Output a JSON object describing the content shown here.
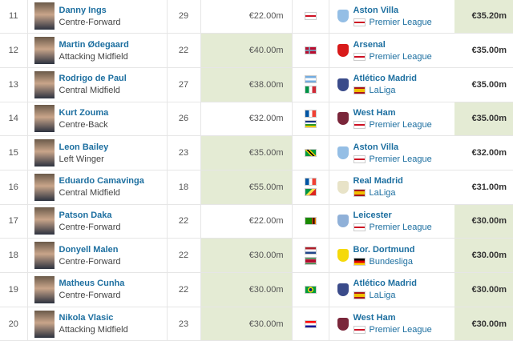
{
  "colors": {
    "highlight": "#e4ebd4",
    "link": "#1d6fa0"
  },
  "rows": [
    {
      "rank": "11",
      "name": "Danny Ings",
      "position": "Centre-Forward",
      "age": "29",
      "market_value": "€22.00m",
      "mv_hl": false,
      "nationality": [
        "england"
      ],
      "club": "Aston Villa",
      "crest": "#94bee5",
      "league": "Premier League",
      "league_flag": "england",
      "fee": "€35.20m",
      "fee_hl": true
    },
    {
      "rank": "12",
      "name": "Martin Ødegaard",
      "position": "Attacking Midfield",
      "age": "22",
      "market_value": "€40.00m",
      "mv_hl": true,
      "nationality": [
        "norway"
      ],
      "club": "Arsenal",
      "crest": "#d81a1a",
      "league": "Premier League",
      "league_flag": "england",
      "fee": "€35.00m",
      "fee_hl": false
    },
    {
      "rank": "13",
      "name": "Rodrigo de Paul",
      "position": "Central Midfield",
      "age": "27",
      "market_value": "€38.00m",
      "mv_hl": true,
      "nationality": [
        "argentina",
        "italy"
      ],
      "club": "Atlético Madrid",
      "crest": "#3a4b8a",
      "league": "LaLiga",
      "league_flag": "spain",
      "fee": "€35.00m",
      "fee_hl": false
    },
    {
      "rank": "14",
      "name": "Kurt Zouma",
      "position": "Centre-Back",
      "age": "26",
      "market_value": "€32.00m",
      "mv_hl": false,
      "nationality": [
        "france",
        "centralafrica"
      ],
      "club": "West Ham",
      "crest": "#7a263a",
      "league": "Premier League",
      "league_flag": "england",
      "fee": "€35.00m",
      "fee_hl": true
    },
    {
      "rank": "15",
      "name": "Leon Bailey",
      "position": "Left Winger",
      "age": "23",
      "market_value": "€35.00m",
      "mv_hl": true,
      "nationality": [
        "jamaica"
      ],
      "club": "Aston Villa",
      "crest": "#94bee5",
      "league": "Premier League",
      "league_flag": "england",
      "fee": "€32.00m",
      "fee_hl": false
    },
    {
      "rank": "16",
      "name": "Eduardo Camavinga",
      "position": "Central Midfield",
      "age": "18",
      "market_value": "€55.00m",
      "mv_hl": true,
      "nationality": [
        "france",
        "congo"
      ],
      "club": "Real Madrid",
      "crest": "#e8e3c8",
      "league": "LaLiga",
      "league_flag": "spain",
      "fee": "€31.00m",
      "fee_hl": false
    },
    {
      "rank": "17",
      "name": "Patson Daka",
      "position": "Centre-Forward",
      "age": "22",
      "market_value": "€22.00m",
      "mv_hl": false,
      "nationality": [
        "zambia"
      ],
      "club": "Leicester",
      "crest": "#8fb0d8",
      "league": "Premier League",
      "league_flag": "england",
      "fee": "€30.00m",
      "fee_hl": true
    },
    {
      "rank": "18",
      "name": "Donyell Malen",
      "position": "Centre-Forward",
      "age": "22",
      "market_value": "€30.00m",
      "mv_hl": true,
      "nationality": [
        "netherlands",
        "suriname"
      ],
      "club": "Bor. Dortmund",
      "crest": "#f5d90a",
      "league": "Bundesliga",
      "league_flag": "germany",
      "fee": "€30.00m",
      "fee_hl": true
    },
    {
      "rank": "19",
      "name": "Matheus Cunha",
      "position": "Centre-Forward",
      "age": "22",
      "market_value": "€30.00m",
      "mv_hl": true,
      "nationality": [
        "brazil"
      ],
      "club": "Atlético Madrid",
      "crest": "#3a4b8a",
      "league": "LaLiga",
      "league_flag": "spain",
      "fee": "€30.00m",
      "fee_hl": true
    },
    {
      "rank": "20",
      "name": "Nikola Vlasic",
      "position": "Attacking Midfield",
      "age": "23",
      "market_value": "€30.00m",
      "mv_hl": true,
      "nationality": [
        "croatia"
      ],
      "club": "West Ham",
      "crest": "#7a263a",
      "league": "Premier League",
      "league_flag": "england",
      "fee": "€30.00m",
      "fee_hl": true
    }
  ]
}
